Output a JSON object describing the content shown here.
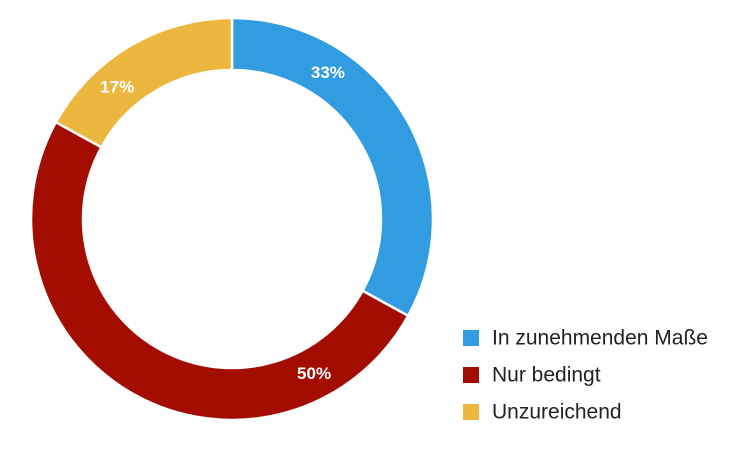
{
  "chart_data": {
    "type": "pie",
    "variant": "donut",
    "title": "",
    "slices": [
      {
        "label": "In zunehmenden Maße",
        "value": 33,
        "display": "33%",
        "color": "#319cdf"
      },
      {
        "label": "Nur bedingt",
        "value": 50,
        "display": "50%",
        "color": "#a20d00"
      },
      {
        "label": "Unzureichend",
        "value": 17,
        "display": "17%",
        "color": "#ebb73e"
      }
    ],
    "legend_placement": "bottom-right"
  }
}
